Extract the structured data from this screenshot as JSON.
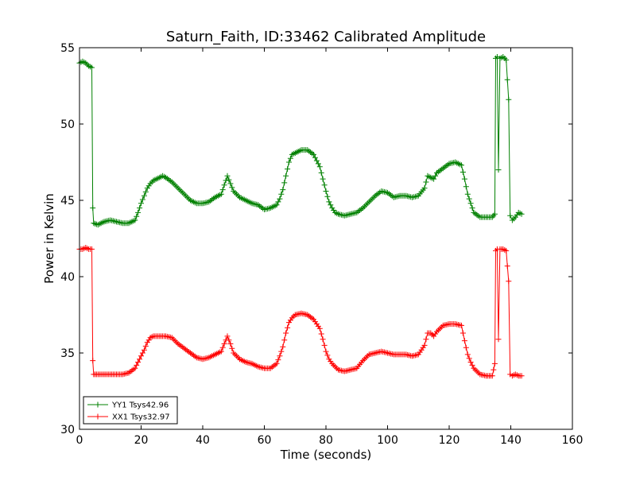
{
  "chart_data": {
    "type": "line",
    "title": "Saturn_Faith, ID:33462 Calibrated Amplitude",
    "xlabel": "Time (seconds)",
    "ylabel": "Power in Kelvin",
    "xlim": [
      0,
      160
    ],
    "ylim": [
      30,
      55
    ],
    "xticks": [
      0,
      20,
      40,
      60,
      80,
      100,
      120,
      140,
      160
    ],
    "yticks": [
      30,
      35,
      40,
      45,
      50,
      55
    ],
    "grid": false,
    "legend_position": "lower-left",
    "series": [
      {
        "name": "YY1 Tsys42.96",
        "color": "#008000",
        "marker": "+",
        "points": [
          [
            0,
            54.0
          ],
          [
            1,
            54.1
          ],
          [
            2,
            54.0
          ],
          [
            3,
            53.8
          ],
          [
            4,
            53.7
          ],
          [
            4.3,
            44.5
          ],
          [
            4.6,
            43.5
          ],
          [
            6,
            43.4
          ],
          [
            8,
            43.6
          ],
          [
            10,
            43.7
          ],
          [
            12,
            43.6
          ],
          [
            14,
            43.5
          ],
          [
            16,
            43.5
          ],
          [
            18,
            43.7
          ],
          [
            19,
            44.2
          ],
          [
            20,
            44.8
          ],
          [
            21,
            45.3
          ],
          [
            22,
            45.8
          ],
          [
            23,
            46.1
          ],
          [
            24,
            46.3
          ],
          [
            26,
            46.5
          ],
          [
            27,
            46.6
          ],
          [
            28,
            46.5
          ],
          [
            30,
            46.2
          ],
          [
            32,
            45.8
          ],
          [
            34,
            45.4
          ],
          [
            36,
            45.0
          ],
          [
            38,
            44.8
          ],
          [
            40,
            44.8
          ],
          [
            42,
            44.9
          ],
          [
            44,
            45.2
          ],
          [
            46,
            45.4
          ],
          [
            47,
            46.0
          ],
          [
            48,
            46.6
          ],
          [
            49,
            46.1
          ],
          [
            50,
            45.6
          ],
          [
            52,
            45.2
          ],
          [
            54,
            45.0
          ],
          [
            56,
            44.8
          ],
          [
            58,
            44.7
          ],
          [
            60,
            44.4
          ],
          [
            62,
            44.5
          ],
          [
            64,
            44.7
          ],
          [
            65,
            45.1
          ],
          [
            66,
            45.7
          ],
          [
            67,
            46.6
          ],
          [
            68,
            47.5
          ],
          [
            69,
            48.0
          ],
          [
            70,
            48.1
          ],
          [
            72,
            48.3
          ],
          [
            74,
            48.3
          ],
          [
            76,
            48.0
          ],
          [
            78,
            47.2
          ],
          [
            79,
            46.4
          ],
          [
            80,
            45.6
          ],
          [
            81,
            44.9
          ],
          [
            82,
            44.5
          ],
          [
            83,
            44.2
          ],
          [
            84,
            44.1
          ],
          [
            86,
            44.0
          ],
          [
            88,
            44.1
          ],
          [
            90,
            44.2
          ],
          [
            92,
            44.5
          ],
          [
            94,
            44.9
          ],
          [
            96,
            45.3
          ],
          [
            98,
            45.6
          ],
          [
            100,
            45.5
          ],
          [
            102,
            45.2
          ],
          [
            104,
            45.3
          ],
          [
            106,
            45.3
          ],
          [
            108,
            45.2
          ],
          [
            110,
            45.3
          ],
          [
            112,
            45.8
          ],
          [
            113,
            46.6
          ],
          [
            114,
            46.5
          ],
          [
            115,
            46.4
          ],
          [
            116,
            46.8
          ],
          [
            118,
            47.1
          ],
          [
            120,
            47.4
          ],
          [
            122,
            47.5
          ],
          [
            124,
            47.3
          ],
          [
            125,
            46.4
          ],
          [
            126,
            45.4
          ],
          [
            127,
            44.8
          ],
          [
            128,
            44.2
          ],
          [
            130,
            43.9
          ],
          [
            132,
            43.9
          ],
          [
            134,
            43.9
          ],
          [
            134.8,
            44.1
          ],
          [
            135.1,
            54.3
          ],
          [
            135.6,
            54.4
          ],
          [
            136.0,
            47.0
          ],
          [
            136.5,
            54.3
          ],
          [
            137.5,
            54.4
          ],
          [
            138.5,
            54.2
          ],
          [
            139.3,
            51.6
          ],
          [
            139.8,
            44.0
          ],
          [
            140.5,
            43.7
          ],
          [
            141.5,
            43.9
          ],
          [
            142.5,
            44.2
          ],
          [
            143.5,
            44.1
          ]
        ]
      },
      {
        "name": "XX1 Tsys32.97",
        "color": "#ff0000",
        "marker": "+",
        "points": [
          [
            0,
            41.8
          ],
          [
            1,
            41.8
          ],
          [
            2,
            41.9
          ],
          [
            3,
            41.8
          ],
          [
            4,
            41.8
          ],
          [
            4.3,
            34.5
          ],
          [
            4.6,
            33.6
          ],
          [
            6,
            33.6
          ],
          [
            8,
            33.6
          ],
          [
            10,
            33.6
          ],
          [
            12,
            33.6
          ],
          [
            14,
            33.6
          ],
          [
            16,
            33.7
          ],
          [
            18,
            34.0
          ],
          [
            19,
            34.4
          ],
          [
            20,
            34.8
          ],
          [
            21,
            35.2
          ],
          [
            22,
            35.7
          ],
          [
            23,
            36.0
          ],
          [
            24,
            36.1
          ],
          [
            26,
            36.1
          ],
          [
            28,
            36.1
          ],
          [
            30,
            36.0
          ],
          [
            32,
            35.6
          ],
          [
            34,
            35.3
          ],
          [
            36,
            35.0
          ],
          [
            38,
            34.7
          ],
          [
            40,
            34.6
          ],
          [
            42,
            34.7
          ],
          [
            44,
            34.9
          ],
          [
            46,
            35.1
          ],
          [
            47,
            35.6
          ],
          [
            48,
            36.1
          ],
          [
            49,
            35.6
          ],
          [
            50,
            35.0
          ],
          [
            52,
            34.6
          ],
          [
            54,
            34.4
          ],
          [
            56,
            34.3
          ],
          [
            58,
            34.1
          ],
          [
            60,
            34.0
          ],
          [
            62,
            34.0
          ],
          [
            64,
            34.3
          ],
          [
            65,
            34.8
          ],
          [
            66,
            35.4
          ],
          [
            67,
            36.3
          ],
          [
            68,
            37.0
          ],
          [
            69,
            37.3
          ],
          [
            70,
            37.5
          ],
          [
            72,
            37.6
          ],
          [
            74,
            37.5
          ],
          [
            76,
            37.2
          ],
          [
            78,
            36.6
          ],
          [
            79,
            35.9
          ],
          [
            80,
            35.1
          ],
          [
            81,
            34.6
          ],
          [
            82,
            34.3
          ],
          [
            84,
            33.9
          ],
          [
            86,
            33.8
          ],
          [
            88,
            33.9
          ],
          [
            90,
            34.0
          ],
          [
            92,
            34.5
          ],
          [
            94,
            34.9
          ],
          [
            96,
            35.0
          ],
          [
            98,
            35.1
          ],
          [
            100,
            35.0
          ],
          [
            102,
            34.9
          ],
          [
            104,
            34.9
          ],
          [
            106,
            34.9
          ],
          [
            108,
            34.8
          ],
          [
            110,
            34.9
          ],
          [
            112,
            35.5
          ],
          [
            113,
            36.3
          ],
          [
            114,
            36.3
          ],
          [
            115,
            36.1
          ],
          [
            116,
            36.4
          ],
          [
            118,
            36.8
          ],
          [
            120,
            36.9
          ],
          [
            122,
            36.9
          ],
          [
            124,
            36.8
          ],
          [
            125,
            35.8
          ],
          [
            126,
            34.9
          ],
          [
            127,
            34.4
          ],
          [
            128,
            34.0
          ],
          [
            130,
            33.6
          ],
          [
            132,
            33.5
          ],
          [
            134,
            33.5
          ],
          [
            134.8,
            34.3
          ],
          [
            135.1,
            41.7
          ],
          [
            135.6,
            41.8
          ],
          [
            136.0,
            35.9
          ],
          [
            136.5,
            41.8
          ],
          [
            137.5,
            41.8
          ],
          [
            138.5,
            41.7
          ],
          [
            139.3,
            39.7
          ],
          [
            139.8,
            33.6
          ],
          [
            140.5,
            33.5
          ],
          [
            141.5,
            33.6
          ],
          [
            142.5,
            33.5
          ],
          [
            143.5,
            33.5
          ]
        ]
      }
    ]
  }
}
